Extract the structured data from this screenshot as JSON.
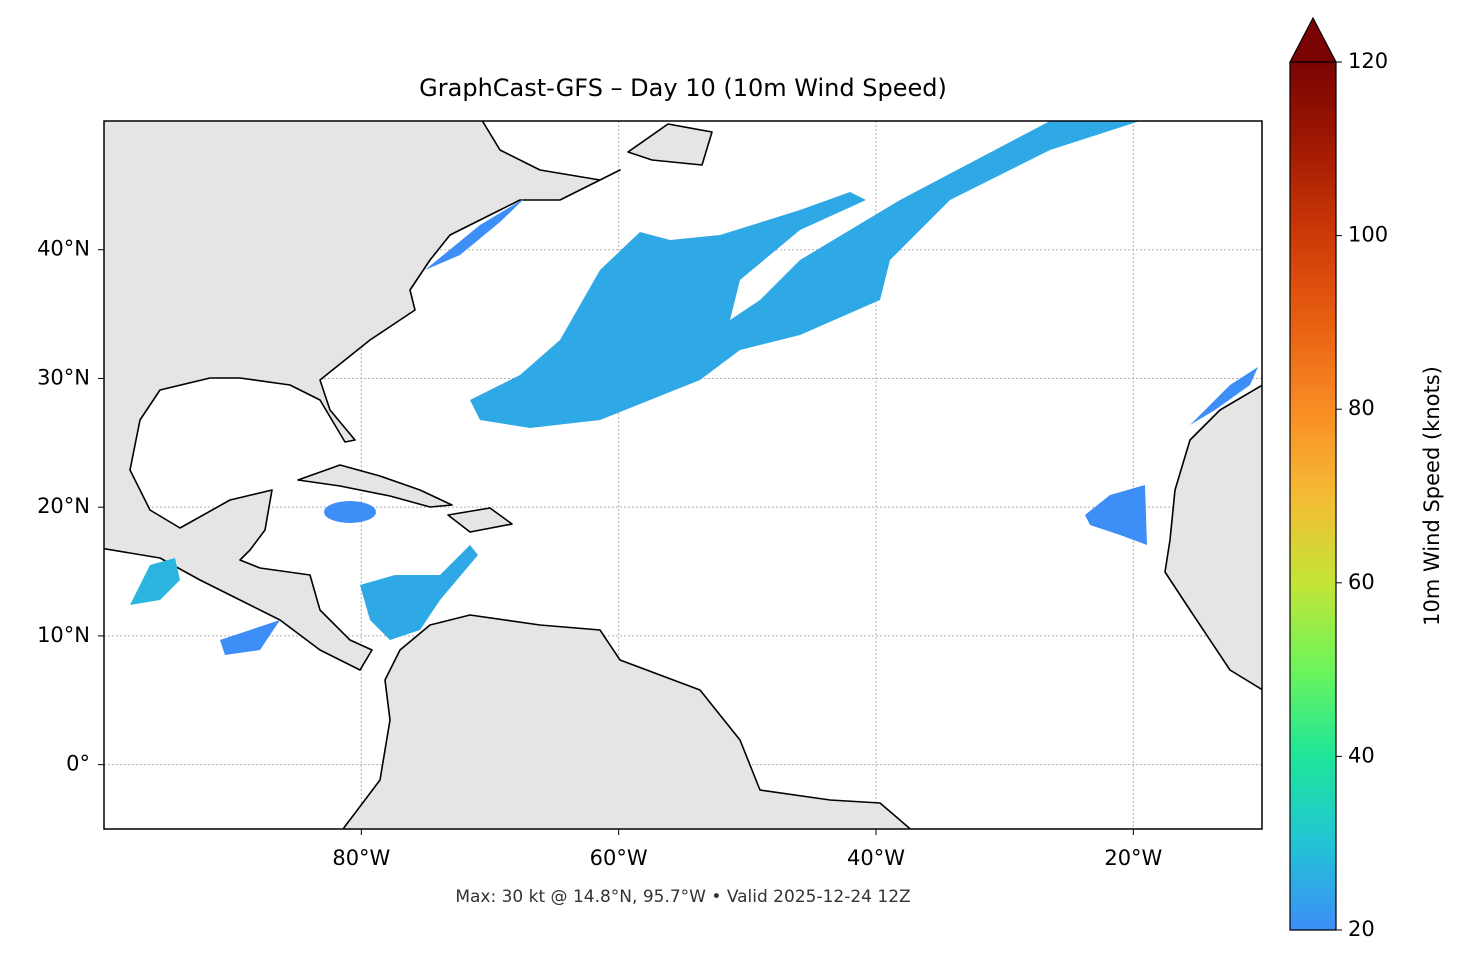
{
  "chart_data": {
    "type": "map",
    "title": "GraphCast-GFS – Day 10 (10m Wind Speed)",
    "subtitle": "Max: 30 kt @ 14.8°N, 95.7°W • Valid 2025-12-24 12Z",
    "xlim": [
      -100,
      -10
    ],
    "ylim": [
      -5,
      50
    ],
    "xticks": [
      {
        "value": -80,
        "label": "80°W"
      },
      {
        "value": -60,
        "label": "60°W"
      },
      {
        "value": -40,
        "label": "40°W"
      },
      {
        "value": -20,
        "label": "20°W"
      }
    ],
    "yticks": [
      {
        "value": 0,
        "label": "0°"
      },
      {
        "value": 10,
        "label": "10°N"
      },
      {
        "value": 20,
        "label": "20°N"
      },
      {
        "value": 30,
        "label": "30°N"
      },
      {
        "value": 40,
        "label": "40°N"
      }
    ],
    "grid": true,
    "colorbar": {
      "label": "10m Wind Speed (knots)",
      "lim": [
        20,
        120
      ],
      "ticks": [
        20,
        40,
        60,
        80,
        100,
        120
      ],
      "extend": "max",
      "colormap": [
        "#3d8ef7",
        "#22c4d5",
        "#1ee59a",
        "#6cf55a",
        "#c4e436",
        "#f5bb35",
        "#f98c24",
        "#e85f12",
        "#cc3a07",
        "#a21a02",
        "#7a0403"
      ]
    }
  }
}
